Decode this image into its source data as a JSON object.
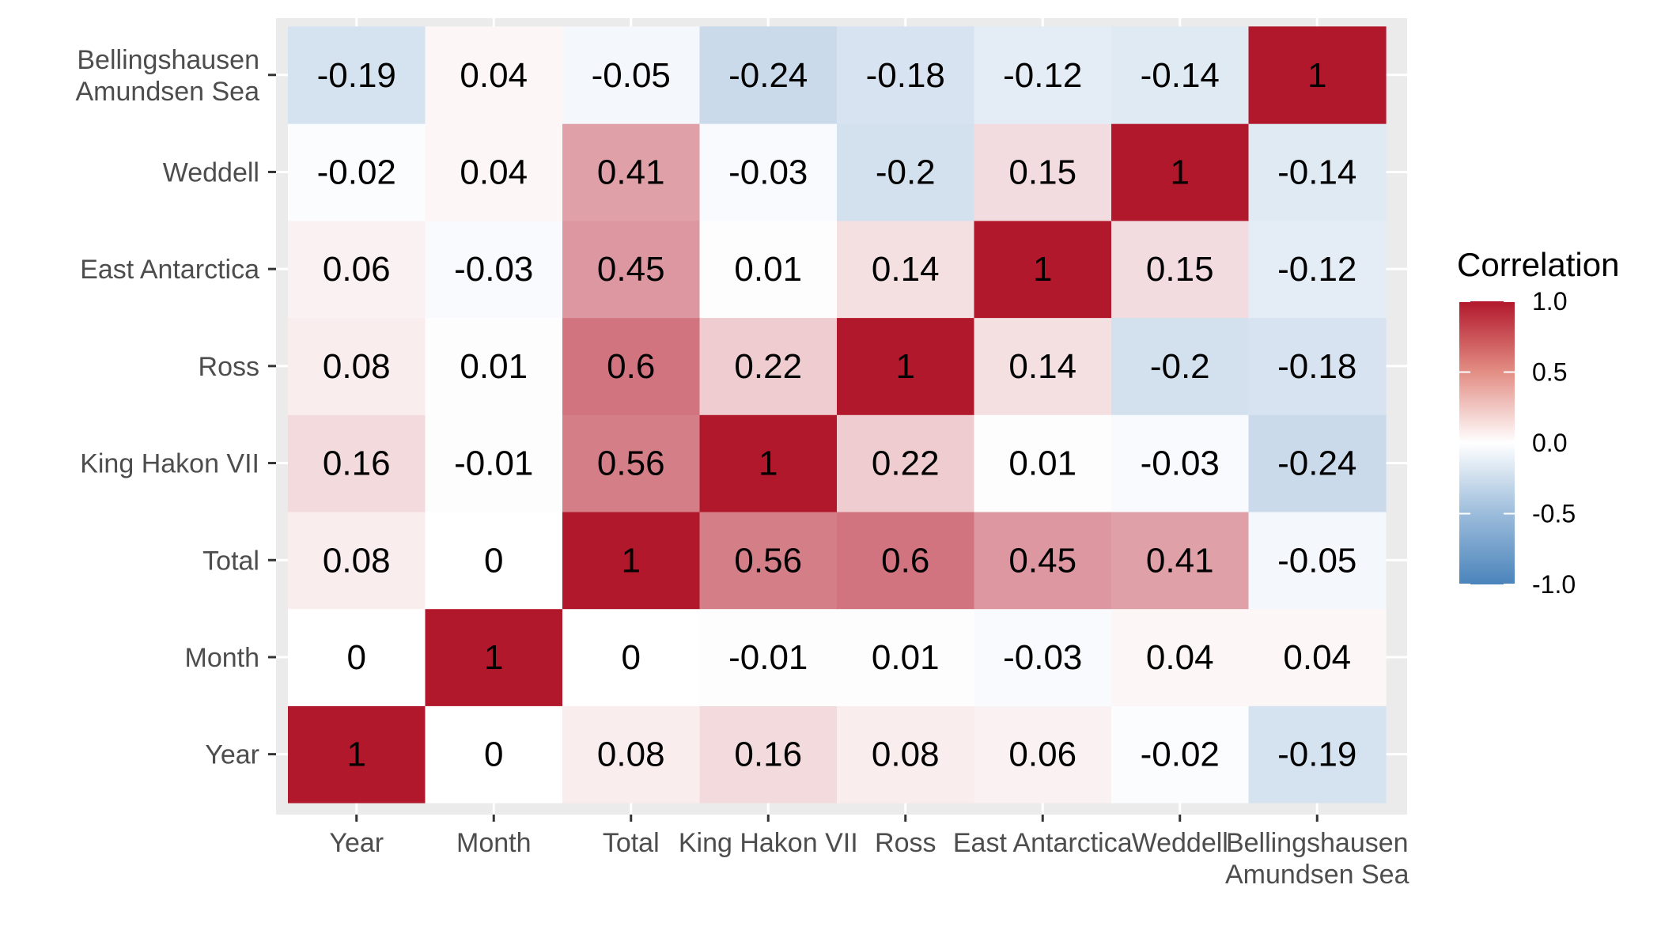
{
  "chart_data": {
    "type": "heatmap",
    "x_categories": [
      [
        "Year"
      ],
      [
        "Month"
      ],
      [
        "Total"
      ],
      [
        "King Hakon VII"
      ],
      [
        "Ross"
      ],
      [
        "East Antarctica"
      ],
      [
        "Weddell"
      ],
      [
        "Bellingshausen",
        "Amundsen Sea"
      ]
    ],
    "y_categories": [
      [
        "Year"
      ],
      [
        "Month"
      ],
      [
        "Total"
      ],
      [
        "King Hakon VII"
      ],
      [
        "Ross"
      ],
      [
        "East Antarctica"
      ],
      [
        "Weddell"
      ],
      [
        "Bellingshausen",
        "Amundsen Sea"
      ]
    ],
    "values": [
      [
        1,
        0,
        0.08,
        0.16,
        0.08,
        0.06,
        -0.02,
        -0.19
      ],
      [
        0,
        1,
        0,
        -0.01,
        0.01,
        -0.03,
        0.04,
        0.04
      ],
      [
        0.08,
        0,
        1,
        0.56,
        0.6,
        0.45,
        0.41,
        -0.05
      ],
      [
        0.16,
        -0.01,
        0.56,
        1,
        0.22,
        0.01,
        -0.03,
        -0.24
      ],
      [
        0.08,
        0.01,
        0.6,
        0.22,
        1,
        0.14,
        -0.2,
        -0.18
      ],
      [
        0.06,
        -0.03,
        0.45,
        0.01,
        0.14,
        1,
        0.15,
        -0.12
      ],
      [
        -0.02,
        0.04,
        0.41,
        -0.03,
        -0.2,
        0.15,
        1,
        -0.14
      ],
      [
        -0.19,
        0.04,
        -0.05,
        -0.24,
        -0.18,
        -0.12,
        -0.14,
        1
      ]
    ],
    "legend": {
      "title": "Correlation",
      "ticks": [
        "1.0",
        "0.5",
        "0.0",
        "-0.5",
        "-1.0"
      ],
      "tick_values": [
        1,
        0.5,
        0,
        -0.5,
        -1
      ],
      "limits": [
        -1,
        1
      ],
      "placement": "right"
    },
    "colors": {
      "low": "#2166ac",
      "mid": "#ffffff",
      "high": "#b2182b",
      "panel_bg": "#ebebeb",
      "grid": "#ffffff"
    },
    "grid": true
  }
}
